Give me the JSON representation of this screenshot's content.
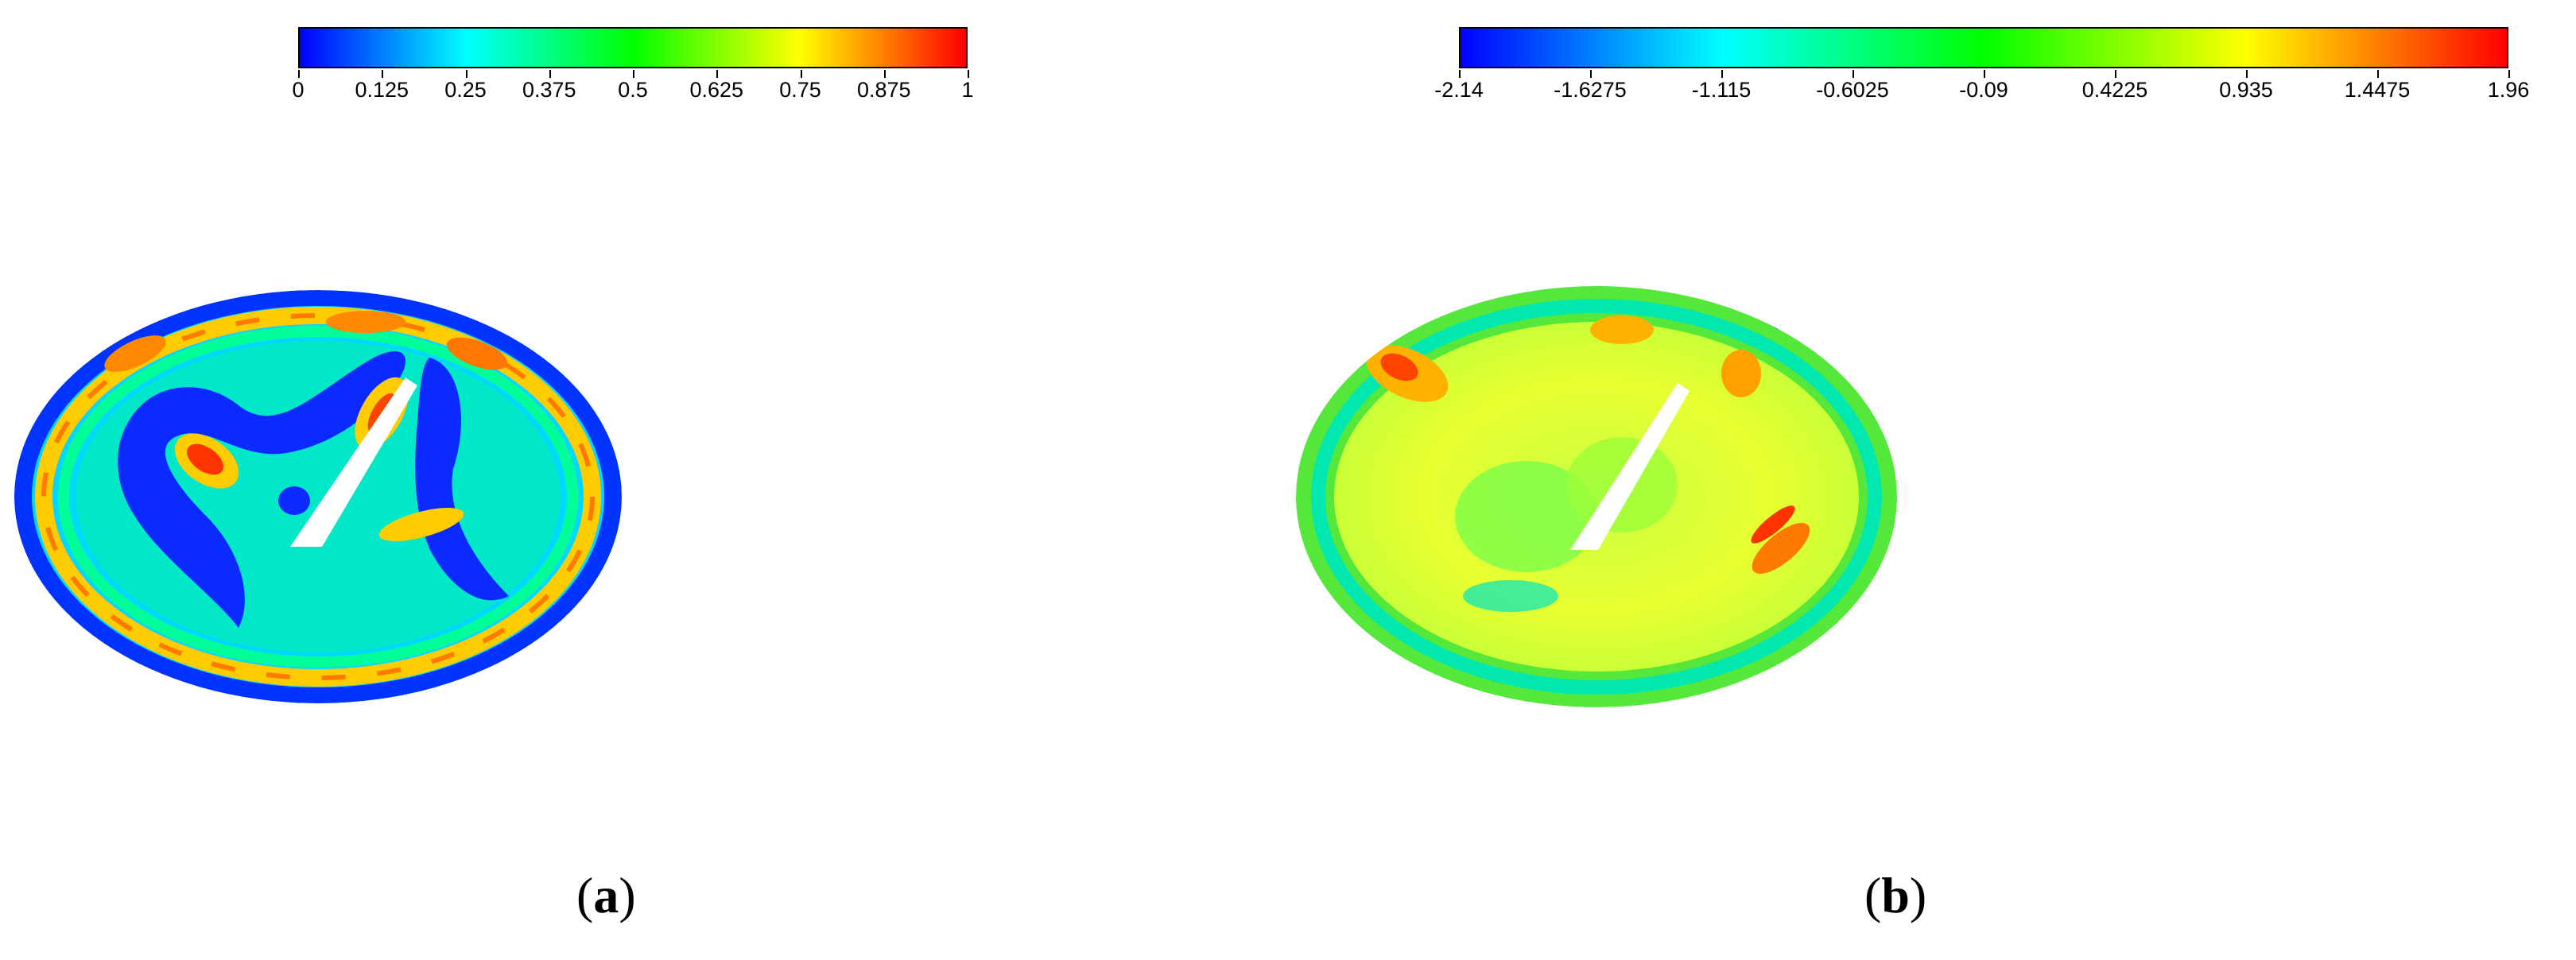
{
  "panels": [
    {
      "id": "a",
      "caption_open": "(",
      "caption_letter": "a",
      "caption_close": ")",
      "colorbar": {
        "ticks": [
          "0",
          "0.125",
          "0.25",
          "0.375",
          "0.5",
          "0.625",
          "0.75",
          "0.875",
          "1"
        ],
        "colors": [
          "#0000ff",
          "#0080ff",
          "#00ffff",
          "#00ff80",
          "#00ff00",
          "#80ff00",
          "#ffff00",
          "#ff8000",
          "#ff0000"
        ]
      }
    },
    {
      "id": "b",
      "caption_open": "(",
      "caption_letter": "b",
      "caption_close": ")",
      "colorbar": {
        "ticks": [
          "-2.14",
          "-1.6275",
          "-1.115",
          "-0.6025",
          "-0.09",
          "0.4225",
          "0.935",
          "1.4475",
          "1.96"
        ],
        "colors": [
          "#0000ff",
          "#0080ff",
          "#00ffff",
          "#00ff80",
          "#00ff00",
          "#80ff00",
          "#ffff00",
          "#ff8000",
          "#ff0000"
        ]
      }
    }
  ]
}
